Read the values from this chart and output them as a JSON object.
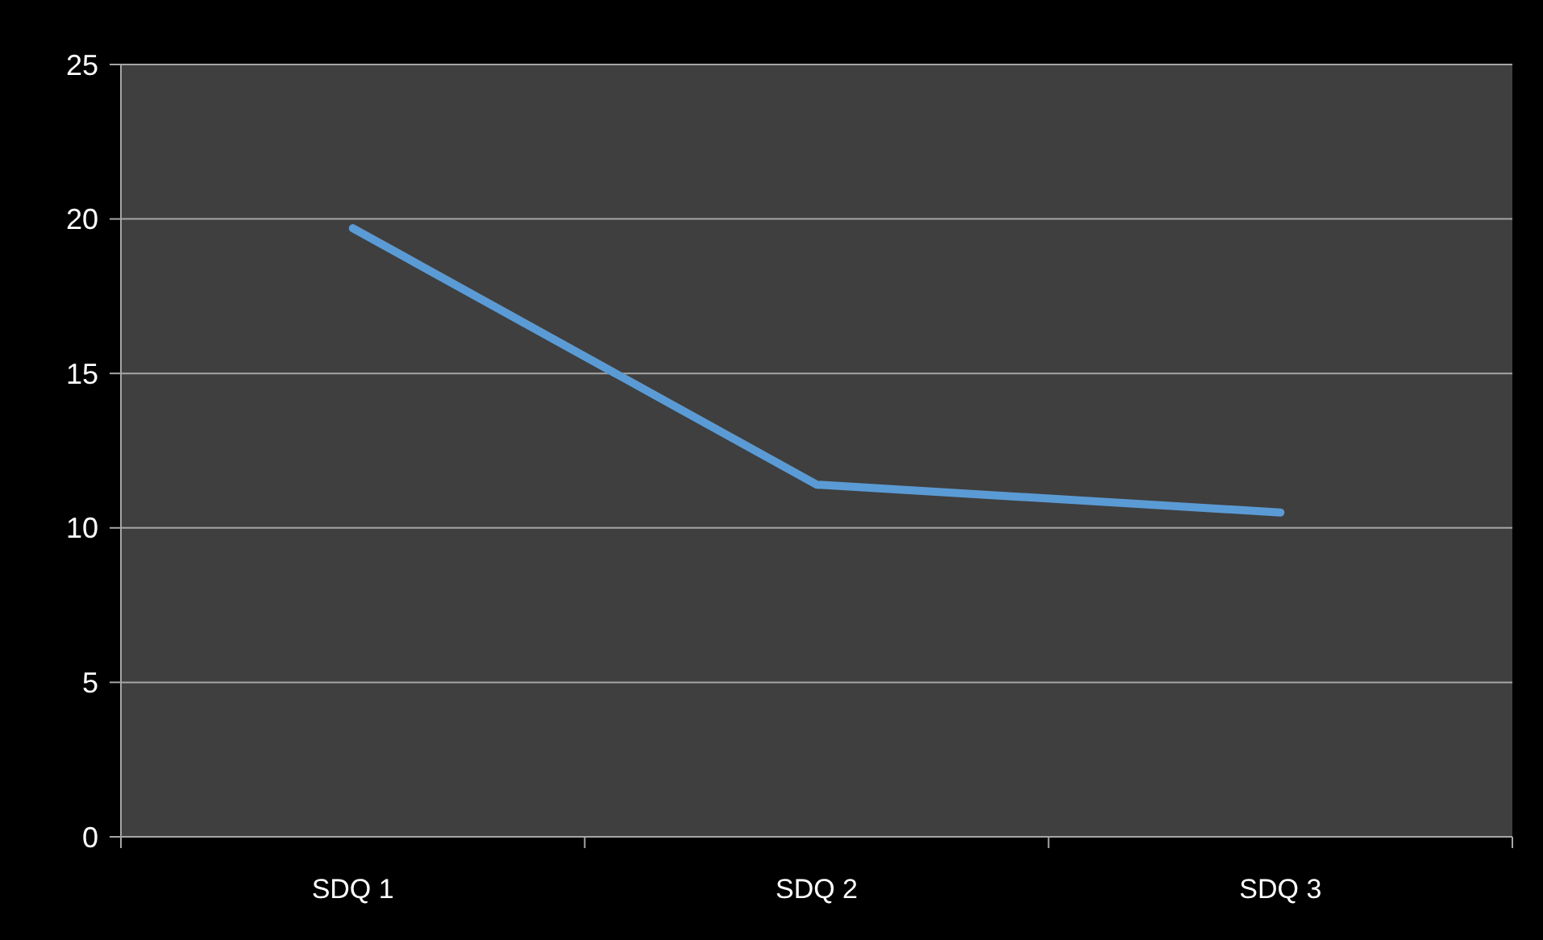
{
  "chart_data": {
    "type": "line",
    "categories": [
      "SDQ 1",
      "SDQ 2",
      "SDQ 3"
    ],
    "series": [
      {
        "color": "#5b9bd5",
        "values": [
          19.7,
          11.4,
          10.5
        ]
      }
    ],
    "ylim": [
      0,
      25
    ],
    "yticks": [
      0,
      5,
      10,
      15,
      20,
      25
    ],
    "grid": "y",
    "marker": "none",
    "line_style": "solid"
  }
}
